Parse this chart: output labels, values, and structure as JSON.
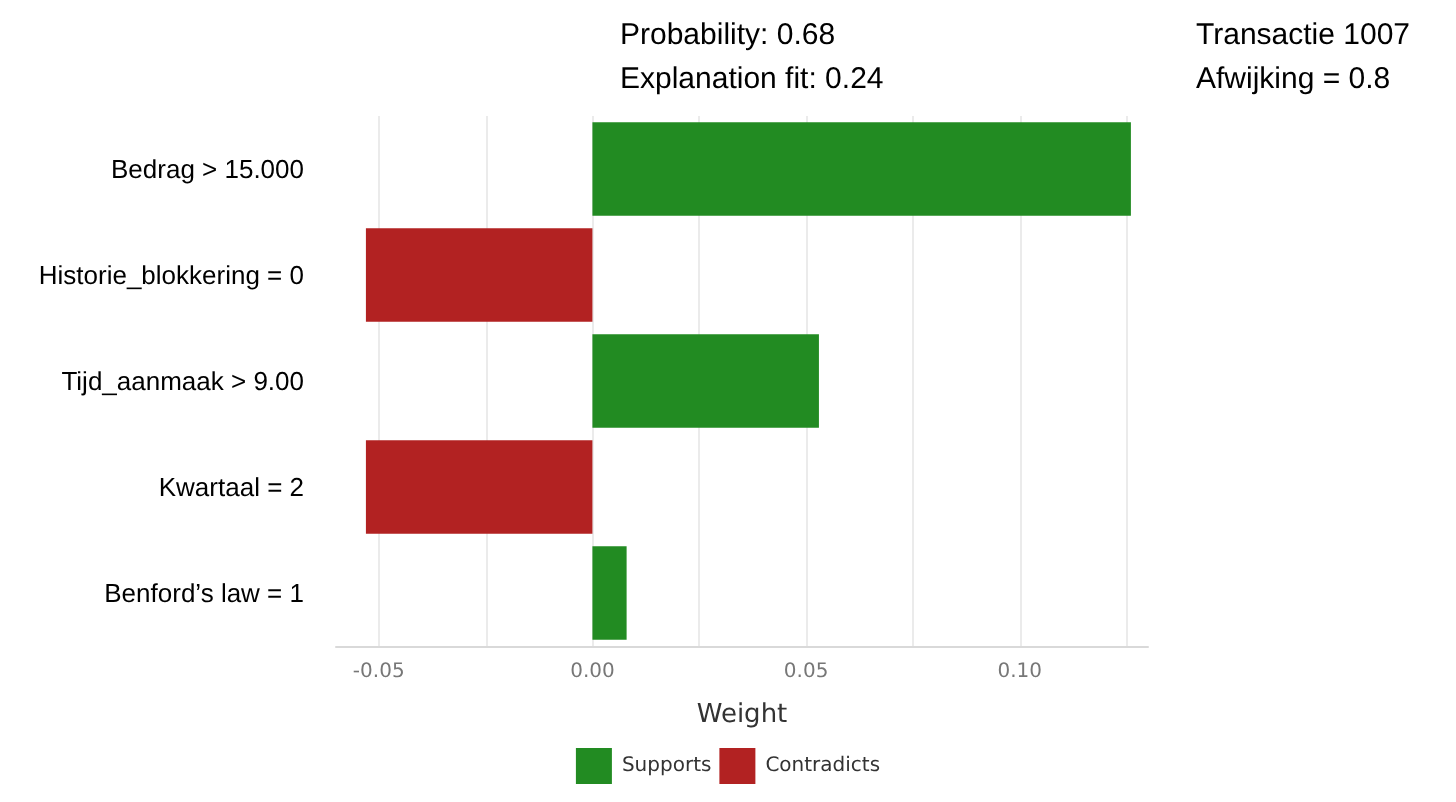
{
  "chart_data": {
    "type": "bar",
    "orientation": "horizontal",
    "xlabel": "Weight",
    "categories": [
      "Bedrag > 15.000",
      "Historie_blokkering = 0",
      "Tijd_aanmaak > 9.00",
      "Kwartaal = 2",
      "Benford’s law = 1"
    ],
    "series": [
      {
        "name": "Supports",
        "color": "#228b22",
        "values": [
          0.126,
          null,
          0.053,
          null,
          0.008
        ]
      },
      {
        "name": "Contradicts",
        "color": "#b22222",
        "values": [
          null,
          -0.053,
          null,
          -0.053,
          null
        ]
      }
    ],
    "xlim": [
      -0.06,
      0.13
    ],
    "xticks": [
      -0.05,
      {
        "value": -0.025,
        "label": null
      },
      {
        "value": 0,
        "label": "0.00"
      },
      {
        "value": 0.025,
        "label": null
      },
      0.05,
      {
        "value": 0.075,
        "label": null
      },
      {
        "value": 0.1,
        "label": "0.10"
      },
      {
        "value": 0.125,
        "label": null
      }
    ],
    "grid": "x",
    "legend": "bottom",
    "annotations": [
      "Probability: 0.68",
      "Explanation fit: 0.24",
      "Transactie 1007",
      "Afwijking = 0.8"
    ]
  }
}
